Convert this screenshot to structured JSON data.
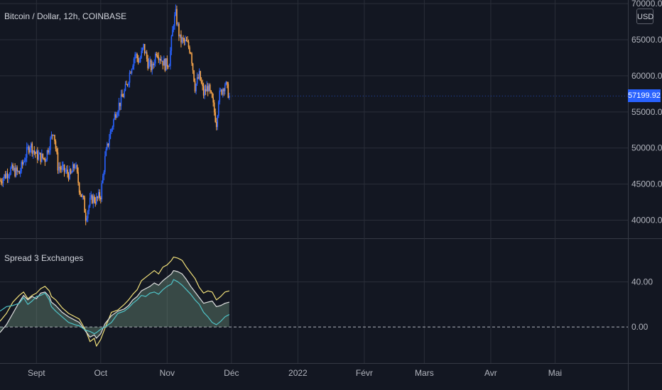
{
  "symbol_title": "Bitcoin / Dollar, 12h, COINBASE",
  "indicator_title": "Spread 3 Exchanges",
  "currency": "USD",
  "last_price": "57199.92",
  "colors": {
    "background": "#131722",
    "grid": "#2a2e39",
    "up_candle": "#2962ff",
    "down_candle": "#f7a54a",
    "spread_yellow": "#f2e17a",
    "spread_white": "#e0e0e0",
    "spread_teal": "#4fc3c7",
    "area_fill": "#7fa58a",
    "zero_line": "#b2b5be",
    "last_price_bg": "#2962ff"
  },
  "chart_data": [
    {
      "type": "candlestick",
      "title": "Bitcoin / Dollar, 12h, COINBASE",
      "y_ticks": [
        "40000.00",
        "45000.00",
        "50000.00",
        "55000.00",
        "60000.00",
        "65000.00",
        "70000.00"
      ],
      "ylim": [
        37500,
        70500
      ],
      "x_ticks": [
        "Sept",
        "Oct",
        "Nov",
        "Déc",
        "2022",
        "Févr",
        "Mars",
        "Avr",
        "Mai"
      ],
      "x_tick_days": [
        0,
        30,
        61,
        91,
        122,
        153,
        181,
        212,
        242
      ],
      "xlim_days": [
        -17,
        276
      ],
      "data_end_day": 90,
      "close_path": [
        [
          -17,
          45500
        ],
        [
          -12,
          47000
        ],
        [
          -8,
          46500
        ],
        [
          -5,
          49000
        ],
        [
          -3,
          50500
        ],
        [
          0,
          49000
        ],
        [
          4,
          48500
        ],
        [
          7,
          51500
        ],
        [
          8,
          52500
        ],
        [
          10,
          47500
        ],
        [
          13,
          46800
        ],
        [
          16,
          46200
        ],
        [
          18,
          47800
        ],
        [
          20,
          44500
        ],
        [
          22,
          42500
        ],
        [
          23,
          40500
        ],
        [
          25,
          42500
        ],
        [
          26,
          43000
        ],
        [
          28,
          42800
        ],
        [
          30,
          43500
        ],
        [
          32,
          48500
        ],
        [
          34,
          51500
        ],
        [
          37,
          55000
        ],
        [
          40,
          57000
        ],
        [
          42,
          58500
        ],
        [
          44,
          61000
        ],
        [
          46,
          63000
        ],
        [
          48,
          62000
        ],
        [
          50,
          64000
        ],
        [
          52,
          61800
        ],
        [
          54,
          61000
        ],
        [
          56,
          63500
        ],
        [
          58,
          62500
        ],
        [
          60,
          61500
        ],
        [
          62,
          62000
        ],
        [
          64,
          67500
        ],
        [
          65,
          68500
        ],
        [
          67,
          65000
        ],
        [
          70,
          64500
        ],
        [
          72,
          63500
        ],
        [
          74,
          58500
        ],
        [
          76,
          60000
        ],
        [
          78,
          57500
        ],
        [
          80,
          58500
        ],
        [
          82,
          56500
        ],
        [
          84,
          53500
        ],
        [
          85,
          57000
        ],
        [
          88,
          59000
        ],
        [
          90,
          57200
        ]
      ],
      "last_price": 57199.92
    },
    {
      "type": "area",
      "title": "Spread 3 Exchanges",
      "y_ticks": [
        "0.00",
        "40.00"
      ],
      "ylim": [
        -32,
        78
      ],
      "zero_line": 0,
      "series": [
        {
          "values": [
            [
              -17,
              5
            ],
            [
              -14,
              12
            ],
            [
              -11,
              22
            ],
            [
              -8,
              28
            ],
            [
              -6,
              31
            ],
            [
              -4,
              25
            ],
            [
              -2,
              28
            ],
            [
              0,
              30
            ],
            [
              2,
              34
            ],
            [
              4,
              36
            ],
            [
              6,
              32
            ],
            [
              7,
              27
            ],
            [
              9,
              24
            ],
            [
              12,
              17
            ],
            [
              15,
              12
            ],
            [
              18,
              9
            ],
            [
              20,
              7
            ],
            [
              23,
              -3
            ],
            [
              25,
              -13
            ],
            [
              27,
              -10
            ],
            [
              28,
              -17
            ],
            [
              30,
              -11
            ],
            [
              32,
              -1
            ],
            [
              35,
              13
            ],
            [
              38,
              15
            ],
            [
              41,
              20
            ],
            [
              43,
              24
            ],
            [
              45,
              29
            ],
            [
              47,
              33
            ],
            [
              49,
              41
            ],
            [
              51,
              44
            ],
            [
              53,
              47
            ],
            [
              55,
              50
            ],
            [
              57,
              47
            ],
            [
              59,
              53
            ],
            [
              61,
              55
            ],
            [
              63,
              59
            ],
            [
              64,
              62
            ],
            [
              66,
              61
            ],
            [
              68,
              59
            ],
            [
              70,
              53
            ],
            [
              72,
              48
            ],
            [
              74,
              43
            ],
            [
              76,
              35
            ],
            [
              78,
              30
            ],
            [
              80,
              32
            ],
            [
              82,
              31
            ],
            [
              84,
              24
            ],
            [
              86,
              27
            ],
            [
              88,
              31
            ],
            [
              90,
              32
            ]
          ]
        },
        {
          "values": [
            [
              -17,
              -5
            ],
            [
              -14,
              2
            ],
            [
              -11,
              12
            ],
            [
              -8,
              22
            ],
            [
              -6,
              28
            ],
            [
              -4,
              24
            ],
            [
              -2,
              27
            ],
            [
              0,
              25
            ],
            [
              2,
              30
            ],
            [
              4,
              31
            ],
            [
              6,
              27
            ],
            [
              7,
              22
            ],
            [
              9,
              19
            ],
            [
              12,
              13
            ],
            [
              15,
              9
            ],
            [
              18,
              6
            ],
            [
              20,
              4
            ],
            [
              23,
              -4
            ],
            [
              25,
              -9
            ],
            [
              27,
              -7
            ],
            [
              28,
              -10
            ],
            [
              30,
              -6
            ],
            [
              32,
              3
            ],
            [
              35,
              10
            ],
            [
              38,
              14
            ],
            [
              41,
              16
            ],
            [
              43,
              19
            ],
            [
              45,
              24
            ],
            [
              47,
              27
            ],
            [
              49,
              32
            ],
            [
              51,
              34
            ],
            [
              53,
              36
            ],
            [
              55,
              39
            ],
            [
              57,
              37
            ],
            [
              59,
              41
            ],
            [
              61,
              44
            ],
            [
              63,
              47
            ],
            [
              64,
              50
            ],
            [
              66,
              49
            ],
            [
              68,
              47
            ],
            [
              70,
              42
            ],
            [
              72,
              36
            ],
            [
              74,
              31
            ],
            [
              76,
              26
            ],
            [
              78,
              21
            ],
            [
              80,
              22
            ],
            [
              82,
              23
            ],
            [
              84,
              18
            ],
            [
              86,
              19
            ],
            [
              88,
              21
            ],
            [
              90,
              22
            ]
          ]
        },
        {
          "values": [
            [
              -17,
              14
            ],
            [
              -14,
              18
            ],
            [
              -11,
              19
            ],
            [
              -8,
              21
            ],
            [
              -6,
              26
            ],
            [
              -4,
              20
            ],
            [
              -2,
              23
            ],
            [
              0,
              27
            ],
            [
              2,
              28
            ],
            [
              4,
              30
            ],
            [
              6,
              24
            ],
            [
              7,
              18
            ],
            [
              9,
              14
            ],
            [
              12,
              9
            ],
            [
              15,
              4
            ],
            [
              18,
              2
            ],
            [
              20,
              1
            ],
            [
              23,
              -3
            ],
            [
              25,
              -4
            ],
            [
              27,
              -6
            ],
            [
              28,
              -5
            ],
            [
              30,
              -2
            ],
            [
              32,
              0
            ],
            [
              35,
              4
            ],
            [
              38,
              12
            ],
            [
              41,
              14
            ],
            [
              43,
              17
            ],
            [
              45,
              21
            ],
            [
              47,
              24
            ],
            [
              49,
              28
            ],
            [
              51,
              27
            ],
            [
              53,
              30
            ],
            [
              55,
              31
            ],
            [
              57,
              29
            ],
            [
              59,
              33
            ],
            [
              61,
              36
            ],
            [
              63,
              38
            ],
            [
              64,
              42
            ],
            [
              66,
              40
            ],
            [
              68,
              37
            ],
            [
              70,
              33
            ],
            [
              72,
              29
            ],
            [
              74,
              24
            ],
            [
              76,
              20
            ],
            [
              78,
              13
            ],
            [
              80,
              9
            ],
            [
              82,
              4
            ],
            [
              84,
              2
            ],
            [
              86,
              5
            ],
            [
              88,
              9
            ],
            [
              90,
              11
            ]
          ]
        }
      ]
    }
  ]
}
